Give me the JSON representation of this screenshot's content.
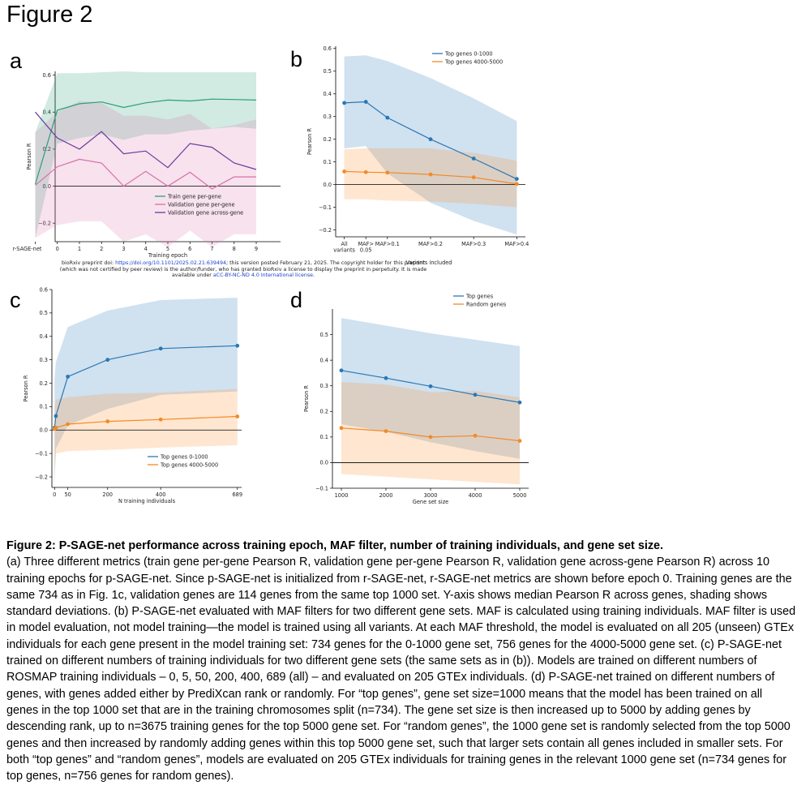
{
  "figure_title": "Figure 2",
  "panels": {
    "a": "a",
    "b": "b",
    "c": "c",
    "d": "d"
  },
  "biorxiv": {
    "line1_prefix": "bioRxiv preprint doi: ",
    "doi": "https://doi.org/10.1101/2025.02.21.639494",
    "line1_suffix": "; this version posted February 21, 2025. The copyright holder for this preprint",
    "line2": "(which was not certified by peer review) is the author/funder, who has granted bioRxiv a license to display the preprint in perpetuity. It is made",
    "line3_prefix": "available under ",
    "license": "aCC-BY-NC-ND 4.0 International license",
    "line3_suffix": "."
  },
  "caption": {
    "title": "Figure 2: P-SAGE-net performance across training epoch, MAF filter, number of training individuals, and gene set size.",
    "body": "(a) Three different metrics (train gene per-gene Pearson R, validation gene per-gene Pearson R, validation gene across-gene Pearson R) across 10 training epochs for p-SAGE-net. Since p-SAGE-net is initialized from r-SAGE-net, r-SAGE-net metrics are shown before epoch 0. Training genes are the same 734 as in Fig. 1c, validation genes are 114 genes from the same top 1000 set. Y-axis shows median Pearson R across genes, shading shows standard deviations. (b) P-SAGE-net evaluated with MAF filters for two different gene sets. MAF is calculated using training individuals. MAF filter is used in model evaluation, not model training—the model is trained using all variants. At each MAF threshold, the model is evaluated on all 205 (unseen) GTEx individuals for each gene present in the model training set: 734 genes for the 0-1000 gene set, 756 genes for the 4000-5000 gene set. (c) P-SAGE-net trained on different numbers of training individuals for two different gene sets (the same sets as in (b)). Models are trained on different numbers of ROSMAP training individuals – 0, 5, 50, 200, 400, 689 (all) – and evaluated on 205 GTEx individuals. (d) P-SAGE-net trained on different numbers of genes, with genes added either by PrediXcan rank or randomly. For “top genes”, gene set size=1000 means that the model has been trained on all genes in the top 1000 set that are in the training chromosomes split (n=734). The gene set size is then increased up to 5000 by adding genes by descending rank, up to n=3675 training genes for the top 5000 gene set. For “random genes”, the 1000 gene set is randomly selected from the top 5000 genes and then increased by randomly adding genes within this top 5000 gene set, such that larger sets contain all genes included in smaller sets. For both “top genes” and “random genes”, models are evaluated on 205 GTEx individuals for training genes in the relevant 1000 gene set (n=734 genes for top genes, n=756 genes for random genes)."
  },
  "chart_data": [
    {
      "panel": "a",
      "type": "line",
      "xlabel": "Training epoch",
      "ylabel": "Pearson R",
      "x_tick_labels": [
        "r-SAGE-net",
        "0",
        "1",
        "2",
        "3",
        "4",
        "5",
        "6",
        "7",
        "8",
        "9"
      ],
      "xlim": [
        -0.1,
        10.1
      ],
      "ylim": [
        -0.3,
        0.62
      ],
      "y_ticks": [
        -0.2,
        0.0,
        0.2,
        0.4,
        0.6
      ],
      "y_tick_labels": [
        "−0.2",
        "0.0",
        "0.2",
        "0.4",
        "0.6"
      ],
      "zero_line": true,
      "markers": false,
      "legend_position": "lower-right",
      "series": [
        {
          "name": "Train gene per-gene",
          "color": "#2ca07a",
          "fill": "rgba(44,160,122,0.22)",
          "values": [
            0.01,
            0.41,
            0.445,
            0.455,
            0.425,
            0.45,
            0.465,
            0.46,
            0.47,
            0.468,
            0.465
          ],
          "lower": [
            -0.28,
            0.23,
            0.26,
            0.28,
            0.25,
            0.28,
            0.28,
            0.3,
            0.31,
            0.32,
            0.31
          ],
          "upper": [
            0.29,
            0.61,
            0.61,
            0.615,
            0.62,
            0.615,
            0.615,
            0.615,
            0.615,
            0.615,
            0.615
          ]
        },
        {
          "name": "Validation gene per-gene",
          "color": "#d86fa8",
          "fill": "rgba(216,111,168,0.2)",
          "values": [
            0.005,
            0.105,
            0.145,
            0.125,
            0.0,
            0.08,
            0.0,
            0.075,
            -0.015,
            0.05,
            0.05
          ],
          "lower": [
            -0.28,
            -0.21,
            -0.19,
            -0.19,
            -0.3,
            -0.26,
            -0.33,
            -0.24,
            -0.33,
            -0.26,
            -0.26
          ],
          "upper": [
            0.29,
            0.4,
            0.46,
            0.45,
            0.38,
            0.38,
            0.36,
            0.39,
            0.31,
            0.33,
            0.36
          ]
        },
        {
          "name": "Validation gene across-gene",
          "color": "#6a3d9a",
          "fill": "rgba(106,61,154,0)",
          "values": [
            0.4,
            0.26,
            0.2,
            0.295,
            0.175,
            0.19,
            0.1,
            0.23,
            0.21,
            0.125,
            0.09
          ]
        }
      ]
    },
    {
      "panel": "b",
      "type": "line",
      "xlabel": "Variants included",
      "ylabel": "Pearson R",
      "x": [
        0,
        0.05,
        0.1,
        0.2,
        0.3,
        0.4
      ],
      "x_tick_labels": [
        "All\nvariants",
        "MAF>\n0.05",
        "MAF>0.1",
        "MAF>0.2",
        "MAF>0.3",
        "MAF>0.4"
      ],
      "xlim": [
        -0.02,
        0.42
      ],
      "ylim": [
        -0.23,
        0.61
      ],
      "y_ticks": [
        -0.2,
        -0.1,
        0.0,
        0.1,
        0.2,
        0.3,
        0.4,
        0.5,
        0.6
      ],
      "y_tick_labels": [
        "−0.2",
        "−0.1",
        "0.0",
        "0.1",
        "0.2",
        "0.3",
        "0.4",
        "0.5",
        "0.6"
      ],
      "zero_line": true,
      "markers": true,
      "legend_position": "top-right",
      "series": [
        {
          "name": "Top genes 0-1000",
          "color": "#2878b5",
          "fill": "rgba(43,120,185,0.22)",
          "values": [
            0.36,
            0.365,
            0.295,
            0.2,
            0.115,
            0.025
          ],
          "lower": [
            0.16,
            0.17,
            0.05,
            -0.08,
            -0.16,
            -0.22
          ],
          "upper": [
            0.565,
            0.57,
            0.545,
            0.47,
            0.38,
            0.28
          ]
        },
        {
          "name": "Top genes 4000-5000",
          "color": "#f28a27",
          "fill": "rgba(255,150,60,0.24)",
          "values": [
            0.058,
            0.055,
            0.053,
            0.045,
            0.032,
            0.003
          ],
          "lower": [
            -0.065,
            -0.065,
            -0.07,
            -0.075,
            -0.085,
            -0.1
          ],
          "upper": [
            0.155,
            0.16,
            0.16,
            0.16,
            0.14,
            0.105
          ]
        }
      ]
    },
    {
      "panel": "c",
      "type": "line",
      "xlabel": "N training individuals",
      "ylabel": "Pearson R",
      "x": [
        0,
        5,
        50,
        200,
        400,
        689
      ],
      "x_ticks": [
        0,
        50,
        200,
        400,
        689
      ],
      "x_tick_labels": [
        "0",
        "50",
        "200",
        "400",
        "689"
      ],
      "xlim": [
        -10,
        705
      ],
      "ylim": [
        -0.245,
        0.6
      ],
      "y_ticks": [
        -0.2,
        -0.1,
        0.0,
        0.1,
        0.2,
        0.3,
        0.4,
        0.5,
        0.6
      ],
      "y_tick_labels": [
        "−0.2",
        "−0.1",
        "0.0",
        "0.1",
        "0.2",
        "0.3",
        "0.4",
        "0.5",
        "0.6"
      ],
      "zero_line": true,
      "markers": true,
      "legend_position": "lower-right",
      "series": [
        {
          "name": "Top genes 0-1000",
          "color": "#2878b5",
          "fill": "rgba(43,120,185,0.22)",
          "values": [
            0.01,
            0.06,
            0.228,
            0.3,
            0.348,
            0.36
          ],
          "lower": [
            -0.24,
            -0.08,
            0.02,
            0.09,
            0.15,
            0.165
          ],
          "upper": [
            0.22,
            0.29,
            0.44,
            0.51,
            0.555,
            0.565
          ]
        },
        {
          "name": "Top genes 4000-5000",
          "color": "#f28a27",
          "fill": "rgba(255,150,60,0.24)",
          "values": [
            0.005,
            0.01,
            0.025,
            0.037,
            0.045,
            0.058
          ],
          "lower": [
            -0.18,
            -0.1,
            -0.09,
            -0.085,
            -0.075,
            -0.065
          ],
          "upper": [
            0.1,
            0.13,
            0.14,
            0.155,
            0.16,
            0.175
          ]
        }
      ]
    },
    {
      "panel": "d",
      "type": "line",
      "xlabel": "Gene set size",
      "ylabel": "Pearson R",
      "x": [
        1000,
        2000,
        3000,
        4000,
        5000
      ],
      "x_tick_labels": [
        "1000",
        "2000",
        "3000",
        "4000",
        "5000"
      ],
      "xlim": [
        800,
        5200
      ],
      "ylim": [
        -0.1,
        0.6
      ],
      "y_ticks": [
        -0.1,
        0.0,
        0.1,
        0.2,
        0.3,
        0.4,
        0.5
      ],
      "y_tick_labels": [
        "−0.1",
        "0.0",
        "0.1",
        "0.2",
        "0.3",
        "0.4",
        "0.5"
      ],
      "zero_line": true,
      "markers": true,
      "legend_position": "top-right",
      "series": [
        {
          "name": "Top genes",
          "color": "#2878b5",
          "fill": "rgba(43,120,185,0.22)",
          "values": [
            0.36,
            0.33,
            0.298,
            0.265,
            0.235
          ],
          "lower": [
            0.15,
            0.12,
            0.08,
            0.045,
            0.015
          ],
          "upper": [
            0.565,
            0.535,
            0.505,
            0.48,
            0.455
          ]
        },
        {
          "name": "Random genes",
          "color": "#f28a27",
          "fill": "rgba(255,150,60,0.24)",
          "values": [
            0.135,
            0.123,
            0.1,
            0.105,
            0.085
          ],
          "lower": [
            -0.045,
            -0.055,
            -0.065,
            -0.075,
            -0.085
          ],
          "upper": [
            0.315,
            0.305,
            0.275,
            0.28,
            0.255
          ]
        }
      ]
    }
  ]
}
